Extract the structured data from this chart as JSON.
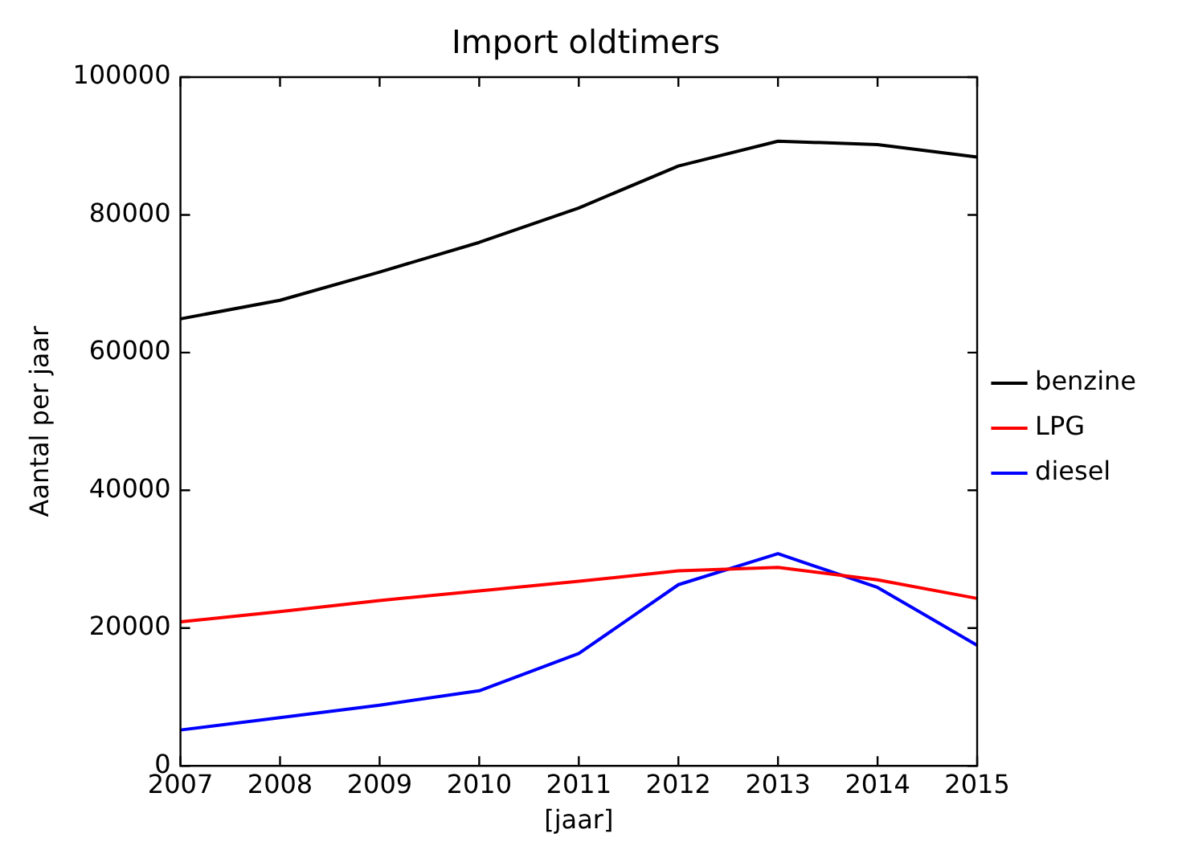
{
  "chart_data": {
    "type": "line",
    "title": "Import oldtimers",
    "xlabel": "[jaar]",
    "ylabel": "Aantal per jaar",
    "x": [
      2007,
      2008,
      2009,
      2010,
      2011,
      2012,
      2013,
      2014,
      2015
    ],
    "series": [
      {
        "name": "benzine",
        "color": "#000000",
        "values": [
          64900,
          67600,
          71700,
          76000,
          81000,
          87100,
          90700,
          90200,
          88400
        ]
      },
      {
        "name": "LPG",
        "color": "#ff0000",
        "values": [
          20900,
          22400,
          24000,
          25400,
          26800,
          28300,
          28800,
          27000,
          24300
        ]
      },
      {
        "name": "diesel",
        "color": "#0000ff",
        "values": [
          5200,
          7000,
          8800,
          10900,
          16300,
          26300,
          30800,
          25900,
          17500
        ]
      }
    ],
    "xlim": [
      2007,
      2015
    ],
    "xticks": [
      2007,
      2008,
      2009,
      2010,
      2011,
      2012,
      2013,
      2014,
      2015
    ],
    "ylim": [
      0,
      100000
    ],
    "yticks": [
      0,
      20000,
      40000,
      60000,
      80000,
      100000
    ],
    "grid": false,
    "legend": "right",
    "marker": "none",
    "line_style": "solid"
  }
}
